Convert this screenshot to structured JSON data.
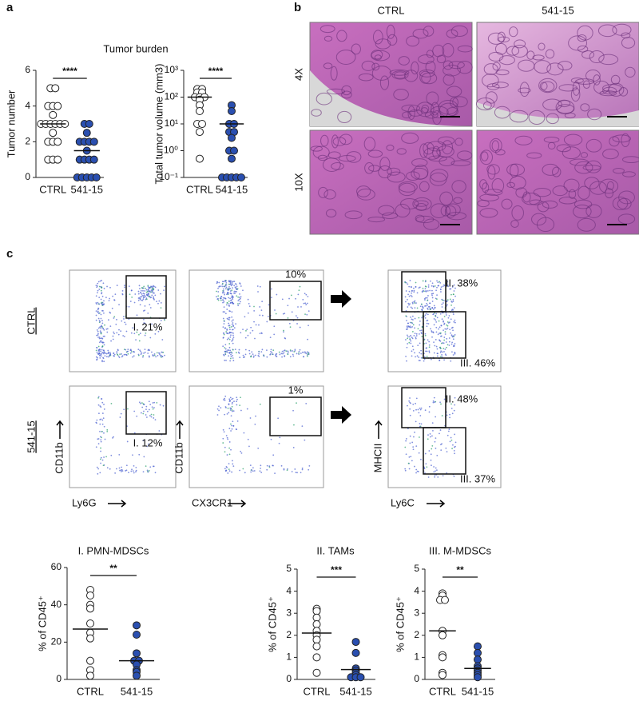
{
  "panel_labels": [
    "a",
    "b",
    "c"
  ],
  "chart_data": [
    {
      "type": "dot",
      "title": "Tumor burden",
      "ylabel": "Tumor number",
      "ylim": [
        0,
        6
      ],
      "yticks": [
        0,
        2,
        4,
        6
      ],
      "significance": "****",
      "series": [
        {
          "name": "CTRL",
          "color": "#ffffff",
          "mean": 3.0,
          "values": [
            5,
            5,
            4,
            4,
            4,
            3.5,
            3,
            3,
            3,
            3,
            3,
            3,
            2.5,
            2,
            2,
            2,
            1,
            1,
            1
          ]
        },
        {
          "name": "541-15",
          "color": "#2a4fb0",
          "mean": 1.5,
          "values": [
            3,
            3,
            2.5,
            2,
            2,
            2,
            2,
            1.5,
            1,
            1,
            1,
            1,
            0,
            0,
            0,
            0,
            0
          ]
        }
      ]
    },
    {
      "type": "dot",
      "ylabel": "Total tumor volume (mm3)",
      "log_scale": true,
      "ylim": [
        0.1,
        1000
      ],
      "yticks": [
        {
          "value": 0.1,
          "label": "10⁻¹"
        },
        {
          "value": 1,
          "label": "10⁰"
        },
        {
          "value": 10,
          "label": "10¹"
        },
        {
          "value": 100,
          "label": "10²"
        },
        {
          "value": 1000,
          "label": "10³"
        }
      ],
      "significance": "****",
      "series": [
        {
          "name": "CTRL",
          "color": "#ffffff",
          "mean": 100,
          "values": [
            200,
            200,
            150,
            150,
            100,
            100,
            100,
            80,
            50,
            30,
            10,
            10,
            5,
            0.5
          ]
        },
        {
          "name": "541-15",
          "color": "#2a4fb0",
          "mean": 10,
          "values": [
            50,
            30,
            10,
            10,
            5,
            5,
            3,
            1,
            1,
            0.5,
            0.1,
            0.1,
            0.1,
            0.1,
            0.1
          ]
        }
      ]
    },
    {
      "type": "dot",
      "title": "I. PMN-MDSCs",
      "ylabel": "% of CD45⁺",
      "ylim": [
        0,
        60
      ],
      "yticks": [
        0,
        20,
        40,
        60
      ],
      "significance": "**",
      "series": [
        {
          "name": "CTRL",
          "color": "#ffffff",
          "mean": 27,
          "values": [
            48,
            45,
            40,
            38,
            30,
            25,
            22,
            10,
            5,
            2
          ]
        },
        {
          "name": "541-15",
          "color": "#2a4fb0",
          "mean": 10,
          "values": [
            29,
            24,
            14,
            10,
            10,
            8,
            5,
            4,
            2
          ]
        }
      ]
    },
    {
      "type": "dot",
      "title": "II. TAMs",
      "ylabel": "% of CD45⁺",
      "ylim": [
        0,
        5
      ],
      "yticks": [
        0,
        1,
        2,
        3,
        4,
        5
      ],
      "significance": "***",
      "series": [
        {
          "name": "CTRL",
          "color": "#ffffff",
          "mean": 2.1,
          "values": [
            3.2,
            3.1,
            2.8,
            2.5,
            2.2,
            2.0,
            1.8,
            1.5,
            1.0,
            0.3
          ]
        },
        {
          "name": "541-15",
          "color": "#2a4fb0",
          "mean": 0.45,
          "values": [
            1.7,
            1.2,
            0.5,
            0.4,
            0.3,
            0.2,
            0.1,
            0.1,
            0.1
          ]
        }
      ]
    },
    {
      "type": "dot",
      "title": "III. M-MDSCs",
      "ylabel": "% of CD45⁺",
      "ylim": [
        0,
        5
      ],
      "yticks": [
        0,
        1,
        2,
        3,
        4,
        5
      ],
      "significance": "**",
      "series": [
        {
          "name": "CTRL",
          "color": "#ffffff",
          "mean": 2.2,
          "values": [
            3.9,
            3.8,
            3.6,
            3.6,
            2.2,
            2.0,
            1.1,
            1.0,
            0.3,
            0.2
          ]
        },
        {
          "name": "541-15",
          "color": "#2a4fb0",
          "mean": 0.5,
          "values": [
            1.5,
            1.2,
            0.9,
            0.6,
            0.5,
            0.4,
            0.3,
            0.2,
            0.1
          ]
        }
      ]
    }
  ],
  "histology": {
    "columns": [
      "CTRL",
      "541-15"
    ],
    "rows": [
      "4X",
      "10X"
    ]
  },
  "flow": {
    "rows": [
      "CTRL",
      "541-15"
    ],
    "x_labels": [
      "Ly6G",
      "CX3CR1",
      "Ly6C"
    ],
    "y_labels": [
      "CD11b",
      "CD11b",
      "MHCII"
    ],
    "gates": [
      [
        [
          "I. 21%"
        ],
        [
          "10%"
        ],
        [
          "II. 38%",
          "III. 46%"
        ]
      ],
      [
        [
          "I. 12%"
        ],
        [
          "1%"
        ],
        [
          "II. 48%",
          "III. 37%"
        ]
      ]
    ]
  }
}
